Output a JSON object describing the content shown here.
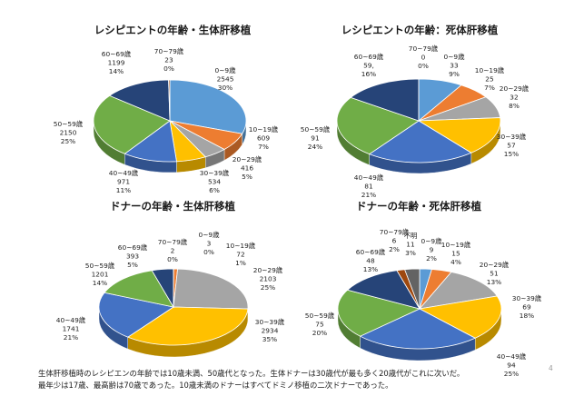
{
  "colors": {
    "0~9歳": "#5B9BD5",
    "10~19歳": "#ED7D31",
    "20~29歳": "#A5A5A5",
    "30~39歳": "#FFC000",
    "40~49歳": "#4472C4",
    "50~59歳": "#70AD47",
    "60~69歳": "#264478",
    "70~79歳": "#9E480E",
    "不明": "#636363"
  },
  "chart_data": [
    {
      "type": "pie",
      "title": "レシピエントの年齢・生体肝移植",
      "categories": [
        "0~9歳",
        "10~19歳",
        "20~29歳",
        "30~39歳",
        "40~49歳",
        "50~59歳",
        "60~69歳",
        "70~79歳"
      ],
      "values": [
        2545,
        609,
        416,
        534,
        971,
        2150,
        1199,
        23
      ],
      "percent_labels": [
        "30%",
        "7%",
        "5%",
        "6%",
        "11%",
        "25%",
        "14%",
        "0%"
      ],
      "value_labels": [
        "2545",
        "609",
        "416",
        "534",
        "971",
        "2150",
        "1199",
        "23"
      ],
      "legend": "none"
    },
    {
      "type": "pie",
      "title": "レシピエントの年齢：死体肝移植",
      "categories": [
        "0~9歳",
        "10~19歳",
        "20~29歳",
        "30~39歳",
        "40~49歳",
        "50~59歳",
        "60~69歳",
        "70~79歳"
      ],
      "values": [
        33,
        25,
        32,
        57,
        81,
        91,
        59,
        0
      ],
      "percent_labels": [
        "9%",
        "7%",
        "8%",
        "15%",
        "21%",
        "24%",
        "16%",
        "0%"
      ],
      "value_labels": [
        "33",
        "25",
        "32",
        "57",
        "81",
        "91",
        "59,",
        "0"
      ],
      "legend": "none"
    },
    {
      "type": "pie",
      "title": "ドナーの年齢・生体肝移植",
      "categories": [
        "0~9歳",
        "10~19歳",
        "20~29歳",
        "30~39歳",
        "40~49歳",
        "50~59歳",
        "60~69歳",
        "70~79歳"
      ],
      "values": [
        3,
        72,
        2103,
        2934,
        1741,
        1201,
        393,
        2
      ],
      "percent_labels": [
        "0%",
        "1%",
        "25%",
        "35%",
        "21%",
        "14%",
        "5%",
        "0%"
      ],
      "value_labels": [
        "3",
        "72",
        "2103",
        "2934",
        "1741",
        "1201",
        "393",
        "2"
      ],
      "legend": "none"
    },
    {
      "type": "pie",
      "title": "ドナーの年齢・死体肝移植",
      "categories": [
        "0~9歳",
        "10~19歳",
        "20~29歳",
        "30~39歳",
        "40~49歳",
        "50~59歳",
        "60~69歳",
        "70~79歳",
        "不明"
      ],
      "values": [
        9,
        15,
        51,
        69,
        94,
        75,
        48,
        6,
        11
      ],
      "percent_labels": [
        "2%",
        "4%",
        "13%",
        "18%",
        "25%",
        "20%",
        "13%",
        "2%",
        "3%"
      ],
      "value_labels": [
        "9",
        "15",
        "51",
        "69",
        "94",
        "75",
        "48",
        "6",
        "11"
      ],
      "legend": "none"
    }
  ],
  "caption": {
    "line1": "生体肝移植時のレシピエンの年齢では10歳未満、50歳代となった。生体ドナーは30歳代が最も多く20歳代がこれに次いだ。",
    "line2": "最年少は17歳、最高齢は70歳であった。10歳未満のドナーはすべてドミノ移植の二次ドナーであった。"
  },
  "page_number": "4"
}
